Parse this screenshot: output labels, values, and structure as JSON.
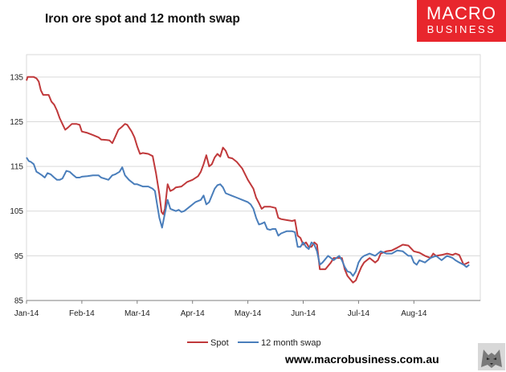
{
  "header": {
    "title": "Iron ore spot and 12 month swap",
    "logo_line1": "MACRO",
    "logo_line2": "BUSINESS"
  },
  "footer": {
    "url": "www.macrobusiness.com.au",
    "mascot_icon": "wolf-icon"
  },
  "colors": {
    "spot": "#c0393b",
    "swap": "#4a7ebb",
    "brand": "#e8262d",
    "grid": "#d9d9d9",
    "axis": "#7f7f7f"
  },
  "chart_data": {
    "type": "line",
    "title": "Iron ore spot and 12 month swap",
    "xlabel": "",
    "ylabel": "",
    "ylim": [
      85,
      140
    ],
    "yticks": [
      85,
      95,
      105,
      115,
      125,
      135
    ],
    "xlim": [
      0,
      8.2
    ],
    "x_ticks": [
      {
        "label": "Jan-14",
        "x": 0
      },
      {
        "label": "Feb-14",
        "x": 1
      },
      {
        "label": "Mar-14",
        "x": 2
      },
      {
        "label": "Apr-14",
        "x": 3
      },
      {
        "label": "May-14",
        "x": 4
      },
      {
        "label": "Jun-14",
        "x": 5
      },
      {
        "label": "Jul-14",
        "x": 6
      },
      {
        "label": "Aug-14",
        "x": 7
      }
    ],
    "grid": "horizontal",
    "legend": "bottom",
    "series": [
      {
        "name": "Spot",
        "color": "#c0393b",
        "points": [
          [
            0.0,
            134.2
          ],
          [
            0.02,
            135.0
          ],
          [
            0.08,
            135.0
          ],
          [
            0.13,
            135.0
          ],
          [
            0.18,
            134.7
          ],
          [
            0.22,
            134.0
          ],
          [
            0.26,
            132.0
          ],
          [
            0.3,
            131.0
          ],
          [
            0.4,
            131.0
          ],
          [
            0.45,
            129.5
          ],
          [
            0.5,
            128.8
          ],
          [
            0.55,
            127.5
          ],
          [
            0.6,
            125.8
          ],
          [
            0.66,
            124.2
          ],
          [
            0.7,
            123.2
          ],
          [
            0.75,
            123.7
          ],
          [
            0.82,
            124.5
          ],
          [
            0.9,
            124.5
          ],
          [
            0.96,
            124.3
          ],
          [
            1.0,
            122.8
          ],
          [
            1.1,
            122.5
          ],
          [
            1.2,
            122.0
          ],
          [
            1.3,
            121.5
          ],
          [
            1.35,
            121.0
          ],
          [
            1.45,
            120.9
          ],
          [
            1.5,
            120.8
          ],
          [
            1.55,
            120.2
          ],
          [
            1.6,
            121.5
          ],
          [
            1.66,
            123.2
          ],
          [
            1.72,
            123.8
          ],
          [
            1.78,
            124.5
          ],
          [
            1.82,
            124.3
          ],
          [
            1.9,
            122.8
          ],
          [
            1.95,
            121.5
          ],
          [
            2.0,
            119.5
          ],
          [
            2.05,
            117.8
          ],
          [
            2.1,
            118.0
          ],
          [
            2.2,
            117.8
          ],
          [
            2.28,
            117.3
          ],
          [
            2.34,
            113.5
          ],
          [
            2.4,
            108.8
          ],
          [
            2.44,
            104.8
          ],
          [
            2.47,
            104.3
          ],
          [
            2.5,
            105.5
          ],
          [
            2.55,
            111.0
          ],
          [
            2.6,
            109.5
          ],
          [
            2.65,
            109.8
          ],
          [
            2.7,
            110.3
          ],
          [
            2.8,
            110.5
          ],
          [
            2.9,
            111.5
          ],
          [
            3.0,
            112.0
          ],
          [
            3.1,
            112.8
          ],
          [
            3.15,
            113.8
          ],
          [
            3.2,
            115.5
          ],
          [
            3.25,
            117.5
          ],
          [
            3.3,
            115.0
          ],
          [
            3.35,
            115.5
          ],
          [
            3.4,
            117.0
          ],
          [
            3.45,
            117.8
          ],
          [
            3.5,
            117.2
          ],
          [
            3.55,
            119.2
          ],
          [
            3.6,
            118.5
          ],
          [
            3.65,
            117.0
          ],
          [
            3.72,
            116.8
          ],
          [
            3.8,
            116.0
          ],
          [
            3.9,
            114.5
          ],
          [
            4.0,
            112.0
          ],
          [
            4.1,
            110.0
          ],
          [
            4.15,
            108.0
          ],
          [
            4.2,
            106.8
          ],
          [
            4.25,
            105.5
          ],
          [
            4.3,
            106.0
          ],
          [
            4.4,
            106.0
          ],
          [
            4.5,
            105.7
          ],
          [
            4.55,
            103.5
          ],
          [
            4.6,
            103.2
          ],
          [
            4.7,
            103.0
          ],
          [
            4.8,
            102.8
          ],
          [
            4.85,
            103.0
          ],
          [
            4.9,
            99.5
          ],
          [
            4.95,
            99.0
          ],
          [
            5.0,
            97.5
          ],
          [
            5.05,
            98.0
          ],
          [
            5.1,
            97.0
          ],
          [
            5.15,
            97.0
          ],
          [
            5.2,
            98.0
          ],
          [
            5.25,
            97.5
          ],
          [
            5.3,
            92.0
          ],
          [
            5.4,
            92.0
          ],
          [
            5.5,
            93.5
          ],
          [
            5.55,
            94.5
          ],
          [
            5.65,
            94.5
          ],
          [
            5.7,
            94.5
          ],
          [
            5.75,
            92.0
          ],
          [
            5.8,
            90.5
          ],
          [
            5.9,
            89.0
          ],
          [
            5.95,
            89.5
          ],
          [
            6.0,
            91.0
          ],
          [
            6.05,
            92.5
          ],
          [
            6.1,
            93.5
          ],
          [
            6.2,
            94.5
          ],
          [
            6.3,
            93.5
          ],
          [
            6.35,
            94.0
          ],
          [
            6.4,
            95.5
          ],
          [
            6.5,
            96.0
          ],
          [
            6.6,
            96.2
          ],
          [
            6.7,
            96.8
          ],
          [
            6.8,
            97.5
          ],
          [
            6.9,
            97.3
          ],
          [
            7.0,
            96.0
          ],
          [
            7.1,
            95.7
          ],
          [
            7.2,
            95.0
          ],
          [
            7.3,
            94.5
          ],
          [
            7.35,
            95.5
          ],
          [
            7.4,
            95.0
          ],
          [
            7.5,
            95.2
          ],
          [
            7.6,
            95.5
          ],
          [
            7.7,
            95.2
          ],
          [
            7.75,
            95.5
          ],
          [
            7.82,
            95.2
          ],
          [
            7.9,
            93.0
          ],
          [
            8.0,
            93.6
          ]
        ]
      },
      {
        "name": "12 month swap",
        "color": "#4a7ebb",
        "points": [
          [
            0.0,
            117.0
          ],
          [
            0.04,
            116.2
          ],
          [
            0.08,
            116.0
          ],
          [
            0.13,
            115.5
          ],
          [
            0.18,
            113.8
          ],
          [
            0.22,
            113.5
          ],
          [
            0.28,
            113.0
          ],
          [
            0.33,
            112.5
          ],
          [
            0.38,
            113.5
          ],
          [
            0.44,
            113.2
          ],
          [
            0.5,
            112.5
          ],
          [
            0.55,
            112.0
          ],
          [
            0.6,
            112.0
          ],
          [
            0.65,
            112.3
          ],
          [
            0.72,
            114.0
          ],
          [
            0.78,
            113.8
          ],
          [
            0.85,
            113.0
          ],
          [
            0.9,
            112.5
          ],
          [
            0.96,
            112.5
          ],
          [
            1.0,
            112.7
          ],
          [
            1.1,
            112.8
          ],
          [
            1.2,
            113.0
          ],
          [
            1.3,
            113.0
          ],
          [
            1.35,
            112.5
          ],
          [
            1.4,
            112.3
          ],
          [
            1.48,
            112.0
          ],
          [
            1.55,
            113.0
          ],
          [
            1.6,
            113.2
          ],
          [
            1.68,
            113.8
          ],
          [
            1.73,
            114.8
          ],
          [
            1.78,
            113.0
          ],
          [
            1.85,
            112.0
          ],
          [
            1.95,
            111.0
          ],
          [
            2.0,
            111.0
          ],
          [
            2.1,
            110.5
          ],
          [
            2.2,
            110.5
          ],
          [
            2.28,
            110.0
          ],
          [
            2.32,
            109.5
          ],
          [
            2.36,
            106.5
          ],
          [
            2.4,
            103.5
          ],
          [
            2.45,
            101.3
          ],
          [
            2.5,
            104.5
          ],
          [
            2.55,
            107.5
          ],
          [
            2.6,
            105.5
          ],
          [
            2.7,
            105.0
          ],
          [
            2.75,
            105.3
          ],
          [
            2.8,
            104.8
          ],
          [
            2.85,
            105.0
          ],
          [
            2.95,
            106.0
          ],
          [
            3.05,
            107.0
          ],
          [
            3.15,
            107.5
          ],
          [
            3.2,
            108.5
          ],
          [
            3.25,
            106.5
          ],
          [
            3.3,
            107.0
          ],
          [
            3.4,
            110.0
          ],
          [
            3.45,
            110.8
          ],
          [
            3.5,
            111.0
          ],
          [
            3.55,
            110.3
          ],
          [
            3.6,
            109.0
          ],
          [
            3.7,
            108.5
          ],
          [
            3.8,
            108.0
          ],
          [
            3.9,
            107.5
          ],
          [
            4.0,
            107.0
          ],
          [
            4.05,
            106.5
          ],
          [
            4.1,
            105.5
          ],
          [
            4.15,
            103.5
          ],
          [
            4.2,
            102.0
          ],
          [
            4.25,
            102.2
          ],
          [
            4.3,
            102.5
          ],
          [
            4.35,
            101.0
          ],
          [
            4.4,
            100.8
          ],
          [
            4.45,
            101.0
          ],
          [
            4.5,
            101.0
          ],
          [
            4.55,
            99.5
          ],
          [
            4.6,
            100.0
          ],
          [
            4.7,
            100.5
          ],
          [
            4.8,
            100.5
          ],
          [
            4.85,
            100.3
          ],
          [
            4.9,
            97.0
          ],
          [
            4.95,
            97.0
          ],
          [
            5.0,
            98.0
          ],
          [
            5.05,
            97.0
          ],
          [
            5.1,
            96.5
          ],
          [
            5.15,
            98.0
          ],
          [
            5.2,
            97.5
          ],
          [
            5.25,
            96.0
          ],
          [
            5.3,
            93.0
          ],
          [
            5.35,
            93.5
          ],
          [
            5.45,
            95.0
          ],
          [
            5.5,
            94.5
          ],
          [
            5.55,
            94.0
          ],
          [
            5.6,
            94.5
          ],
          [
            5.65,
            95.0
          ],
          [
            5.7,
            94.0
          ],
          [
            5.75,
            92.5
          ],
          [
            5.8,
            91.5
          ],
          [
            5.85,
            91.3
          ],
          [
            5.9,
            90.5
          ],
          [
            5.95,
            91.5
          ],
          [
            6.0,
            93.5
          ],
          [
            6.05,
            94.5
          ],
          [
            6.1,
            95.0
          ],
          [
            6.2,
            95.5
          ],
          [
            6.3,
            95.0
          ],
          [
            6.35,
            95.5
          ],
          [
            6.4,
            96.0
          ],
          [
            6.5,
            95.5
          ],
          [
            6.6,
            95.5
          ],
          [
            6.7,
            96.2
          ],
          [
            6.8,
            96.0
          ],
          [
            6.9,
            95.0
          ],
          [
            6.95,
            95.0
          ],
          [
            7.0,
            93.5
          ],
          [
            7.05,
            93.0
          ],
          [
            7.1,
            94.0
          ],
          [
            7.2,
            93.5
          ],
          [
            7.3,
            94.5
          ],
          [
            7.4,
            95.0
          ],
          [
            7.45,
            94.5
          ],
          [
            7.5,
            94.0
          ],
          [
            7.55,
            94.5
          ],
          [
            7.6,
            95.0
          ],
          [
            7.7,
            94.5
          ],
          [
            7.75,
            94.0
          ],
          [
            7.82,
            93.5
          ],
          [
            7.9,
            93.0
          ],
          [
            7.95,
            92.5
          ],
          [
            8.0,
            93.0
          ]
        ]
      }
    ]
  }
}
